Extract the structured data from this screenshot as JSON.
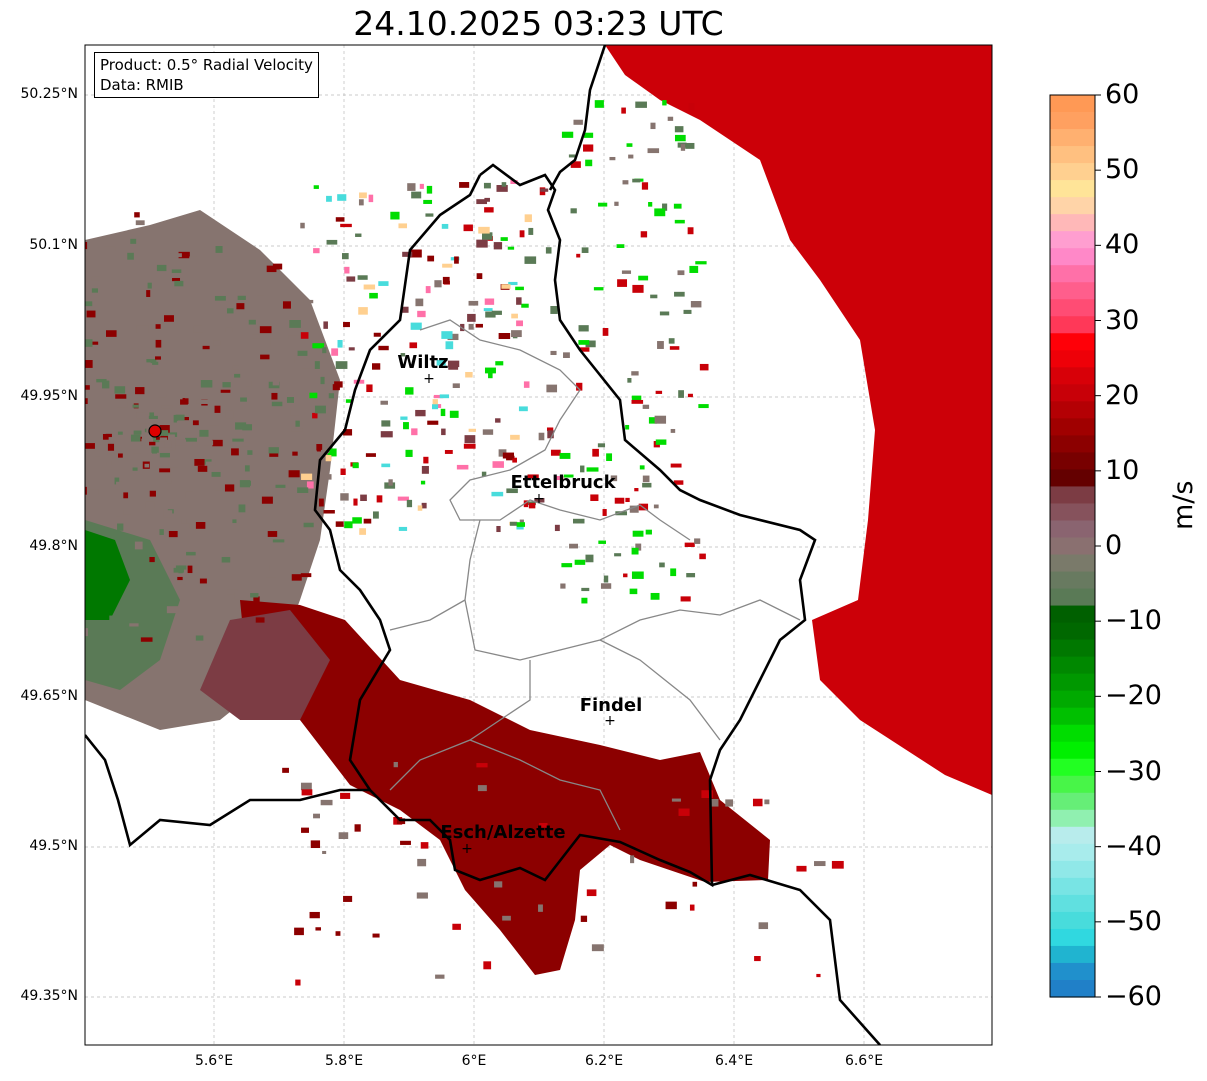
{
  "title": "24.10.2025 03:23 UTC",
  "info": {
    "product": "Product: 0.5° Radial Velocity",
    "data": "Data: RMIB"
  },
  "axes": {
    "lat_ticks": [
      "50.25°N",
      "50.1°N",
      "49.95°N",
      "49.8°N",
      "49.65°N",
      "49.5°N",
      "49.35°N"
    ],
    "lon_ticks": [
      "5.6°E",
      "5.8°E",
      "6°E",
      "6.2°E",
      "6.4°E",
      "6.6°E"
    ]
  },
  "cities": [
    {
      "name": "Wiltz"
    },
    {
      "name": "Ettelbruck"
    },
    {
      "name": "Findel"
    },
    {
      "name": "Esch/Alzette"
    }
  ],
  "colorbar": {
    "label": "m/s",
    "ticks": [
      "60",
      "50",
      "40",
      "30",
      "20",
      "10",
      "0",
      "−10",
      "−20",
      "−30",
      "−40",
      "−50",
      "−60"
    ],
    "colors": [
      "#ff9955",
      "#ffa060",
      "#ffb070",
      "#ffc080",
      "#ffd090",
      "#ffe498",
      "#ffd4a8",
      "#ffb8b8",
      "#ff9ed0",
      "#ff88c8",
      "#ff70a8",
      "#ff5e8c",
      "#ff4c74",
      "#ff3858",
      "#ff0008",
      "#ee0008",
      "#d80008",
      "#c80008",
      "#b40004",
      "#a00000",
      "#8c0000",
      "#780000",
      "#640000",
      "#7c3c44",
      "#86525c",
      "#8a6470",
      "#8a7070",
      "#7a7a6a",
      "#687a60",
      "#5a7a56",
      "#006000",
      "#006800",
      "#007800",
      "#008800",
      "#009800",
      "#00aa00",
      "#00c000",
      "#00dd00",
      "#00f000",
      "#22ff22",
      "#48f548",
      "#66ee77",
      "#90f0b0",
      "#b8ecec",
      "#a8ecec",
      "#90e8e8",
      "#78e4e4",
      "#60e0e0",
      "#48dcdc",
      "#30d8e0",
      "#20b4d0",
      "#2090cc",
      "#2080c8"
    ]
  },
  "radar_site": "radar-site"
}
